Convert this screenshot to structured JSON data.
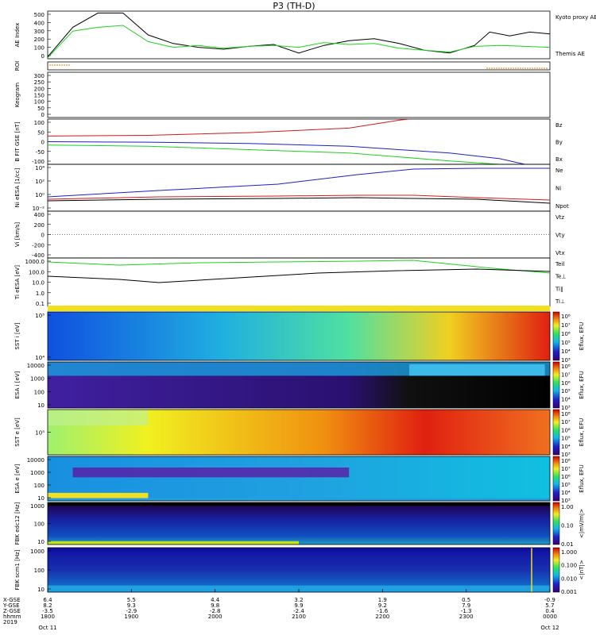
{
  "title": "P3 (TH-D)",
  "colors": {
    "red": "#d21919",
    "green": "#1fd21f",
    "blue": "#1f1fc8",
    "black": "#000000",
    "orange": "#e08000"
  },
  "x_axis": {
    "times": [
      "1800",
      "1900",
      "2000",
      "2100",
      "2200",
      "2300",
      "0000"
    ],
    "row_labels": [
      "X-GSE",
      "Y-GSE",
      "Z-GSE",
      "hhmm",
      "2019"
    ],
    "rows": [
      [
        "6.4",
        "5.5",
        "4.4",
        "3.2",
        "1.9",
        "0.5",
        "-0.9"
      ],
      [
        "8.2",
        "9.3",
        "9.8",
        "9.9",
        "9.2",
        "7.9",
        "5.7"
      ],
      [
        "-3.5",
        "-2.9",
        "-2.8",
        "-2.4",
        "-1.6",
        "-1.3",
        "0.4"
      ],
      [
        "1800",
        "1900",
        "2000",
        "2100",
        "2200",
        "2300",
        "0000"
      ]
    ],
    "start_date": "Oct 11",
    "end_date": "Oct 12"
  },
  "chart_data": [
    {
      "type": "line",
      "ylabel": "AE Index",
      "ylim": [
        0,
        500
      ],
      "yticks": [
        "500",
        "400",
        "300",
        "200",
        "100",
        "0"
      ],
      "legend": [
        "Kyoto proxy AE",
        "Themis AE"
      ],
      "series": [
        {
          "name": "Themis AE",
          "color": "#000000",
          "x": [
            0,
            0.05,
            0.1,
            0.15,
            0.2,
            0.25,
            0.3,
            0.35,
            0.4,
            0.45,
            0.5,
            0.55,
            0.6,
            0.65,
            0.7,
            0.75,
            0.8,
            0.85,
            0.88,
            0.92,
            0.96,
            1.0
          ],
          "y": [
            20,
            330,
            480,
            480,
            250,
            160,
            120,
            100,
            130,
            150,
            60,
            140,
            190,
            210,
            160,
            90,
            60,
            140,
            280,
            240,
            280,
            260
          ]
        },
        {
          "name": "Kyoto proxy AE",
          "color": "#1fd21f",
          "x": [
            0,
            0.05,
            0.1,
            0.15,
            0.2,
            0.25,
            0.3,
            0.35,
            0.4,
            0.45,
            0.5,
            0.55,
            0.6,
            0.65,
            0.7,
            0.75,
            0.8,
            0.85,
            0.9,
            1.0
          ],
          "y": [
            10,
            290,
            330,
            350,
            180,
            120,
            140,
            110,
            130,
            140,
            120,
            170,
            150,
            160,
            110,
            90,
            70,
            130,
            140,
            120
          ]
        }
      ]
    },
    {
      "type": "line",
      "ylabel": "ROI",
      "note": "orange bar at start and end"
    },
    {
      "type": "line",
      "ylabel": "Keogram",
      "ylim": [
        0,
        300
      ],
      "yticks": [
        "300",
        "250",
        "200",
        "150",
        "100",
        "50",
        "0"
      ]
    },
    {
      "type": "line",
      "ylabel": "B FIT GSE [nT]",
      "ylim": [
        -100,
        100
      ],
      "yticks": [
        "100",
        "50",
        "0",
        "-50",
        "-100"
      ],
      "legend": [
        "Bz",
        "By",
        "Bx"
      ],
      "series": [
        {
          "name": "Bz",
          "color": "#d21919",
          "x": [
            0,
            0.2,
            0.4,
            0.6,
            0.7,
            0.72
          ],
          "y": [
            25,
            28,
            40,
            60,
            95,
            100
          ]
        },
        {
          "name": "By",
          "color": "#1fd21f",
          "x": [
            0,
            0.2,
            0.4,
            0.6,
            0.8,
            0.9
          ],
          "y": [
            -15,
            -20,
            -35,
            -50,
            -85,
            -100
          ]
        },
        {
          "name": "Bx",
          "color": "#1f1fc8",
          "x": [
            0,
            0.2,
            0.4,
            0.6,
            0.8,
            0.9,
            0.95
          ],
          "y": [
            0,
            -2,
            -8,
            -20,
            -50,
            -75,
            -100
          ]
        }
      ]
    },
    {
      "type": "line",
      "ylabel": "Ni eESA [1/cc]",
      "yticks": [
        "10⁴",
        "10²",
        "10⁰",
        "10⁻²"
      ],
      "legend": [
        "Ne",
        "Ni",
        "Npot"
      ]
    },
    {
      "type": "line",
      "ylabel": "Vi [km/s]",
      "ylim": [
        -500,
        500
      ],
      "yticks": [
        "400",
        "200",
        "0",
        "-200",
        "-400"
      ],
      "legend": [
        "Vtz",
        "Vty",
        "Vtx"
      ]
    },
    {
      "type": "line",
      "ylabel": "Ti eESA [eV]",
      "yticks": [
        "1000.0",
        "100.0",
        "10.0",
        "1.0",
        "0.1"
      ],
      "legend": [
        "Teil",
        "Te⊥",
        "Ti∥",
        "Ti⊥"
      ]
    },
    {
      "type": "heatmap",
      "ylabel": "SST i [eV]",
      "yticks": [
        "10⁵",
        "10⁴"
      ],
      "cbar": [
        "10⁸",
        "10⁷",
        "10⁶",
        "10⁵",
        "10⁴",
        "10³"
      ],
      "cbar_label": "Eflux, EFU"
    },
    {
      "type": "heatmap",
      "ylabel": "ESA i [eV]",
      "yticks": [
        "10000",
        "1000",
        "100",
        "10"
      ],
      "cbar": [
        "10⁸",
        "10⁷",
        "10⁶",
        "10⁵",
        "10⁴",
        "10³"
      ],
      "cbar_label": "Eflux, EFU"
    },
    {
      "type": "heatmap",
      "ylabel": "SST e [eV]",
      "yticks": [
        "10⁵"
      ],
      "cbar": [
        "10⁸",
        "10⁷",
        "10⁶",
        "10⁵",
        "10⁴",
        "10³"
      ],
      "cbar_label": "Eflux, EFU"
    },
    {
      "type": "heatmap",
      "ylabel": "ESA e [eV]",
      "yticks": [
        "10000",
        "1000",
        "100",
        "10"
      ],
      "cbar": [
        "10⁸",
        "10⁷",
        "10⁶",
        "10⁵",
        "10⁴",
        "10³"
      ],
      "cbar_label": "Eflux, EFU"
    },
    {
      "type": "heatmap",
      "ylabel": "FBK edc12 [Hz]",
      "yticks": [
        "1000",
        "100",
        "10"
      ],
      "cbar": [
        "1.00",
        "0.10",
        "0.01"
      ],
      "cbar_label": "<|mV/m|>"
    },
    {
      "type": "heatmap",
      "ylabel": "FBK scm1 [Hz]",
      "yticks": [
        "1000",
        "100",
        "10"
      ],
      "cbar": [
        "1.000",
        "0.100",
        "0.010",
        "0.001"
      ],
      "cbar_label": "<|nT|>"
    }
  ]
}
